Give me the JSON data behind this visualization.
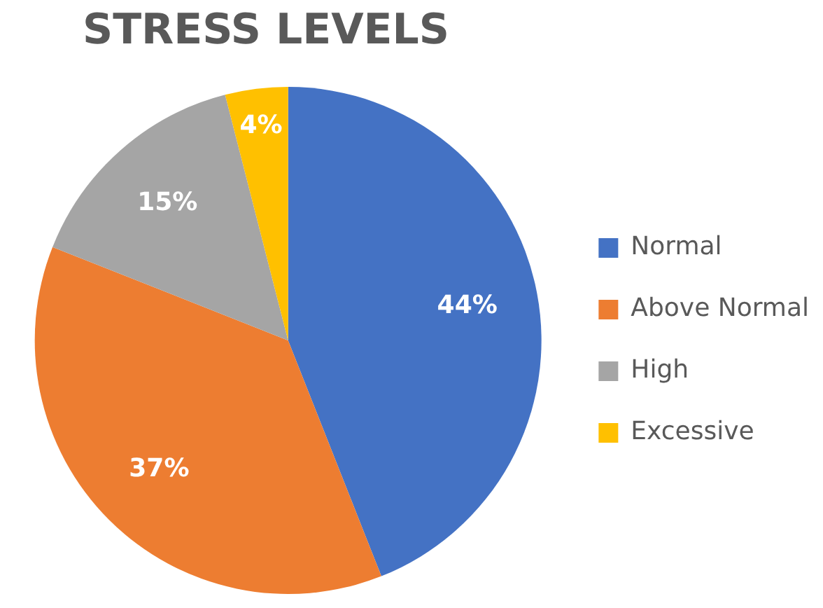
{
  "chart_data": {
    "type": "pie",
    "title": "STRESS LEVELS",
    "categories": [
      "Normal",
      "Above Normal",
      "High",
      "Excessive"
    ],
    "values": [
      44,
      37,
      15,
      4
    ],
    "colors": [
      "#4472c4",
      "#ed7d31",
      "#a5a5a5",
      "#ffc000"
    ],
    "value_labels": [
      "44%",
      "37%",
      "15%",
      "4%"
    ],
    "legend": "right"
  }
}
